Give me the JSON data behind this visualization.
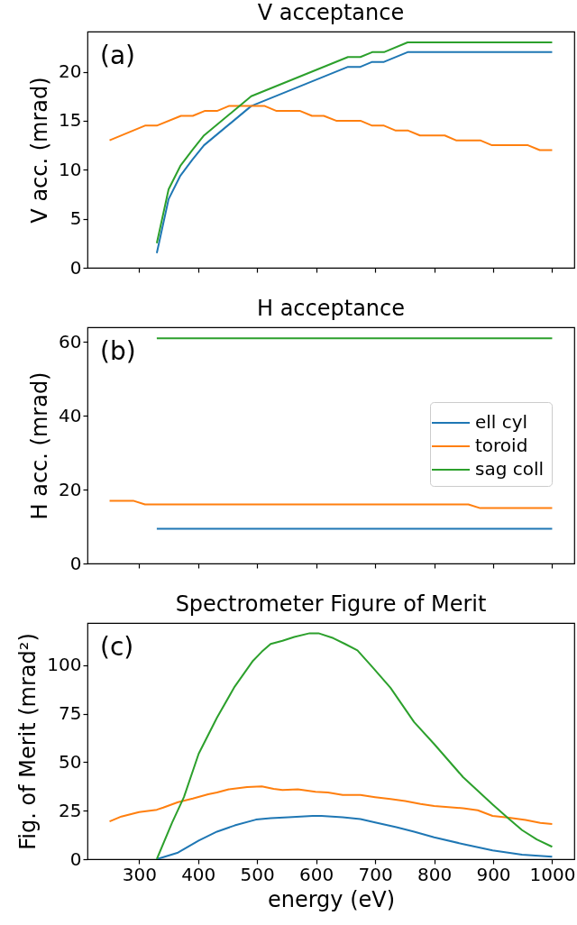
{
  "chart_data": [
    {
      "type": "line",
      "title": "V acceptance",
      "ylabel": "V acc. (mrad)",
      "annotations": [
        "(a)"
      ],
      "tick_labels": "y",
      "xlim": [
        212.5,
        1037.5
      ],
      "xticks": [
        300,
        400,
        500,
        600,
        700,
        800,
        900,
        1000
      ],
      "ylim": [
        0,
        24.1
      ],
      "yticks": [
        0,
        5,
        10,
        15,
        20
      ],
      "series": [
        {
          "color": "#1f77b4",
          "x": [
            330,
            350,
            370,
            390,
            410,
            490,
            654,
            675,
            695,
            715,
            755,
            1000
          ],
          "values": [
            1.5,
            7,
            9.4,
            11,
            12.5,
            16.5,
            20.5,
            20.5,
            21,
            21,
            22,
            22
          ]
        },
        {
          "color": "#ff7f0e",
          "x": [
            250,
            310,
            330,
            371,
            391,
            411,
            432,
            452,
            513,
            533,
            573,
            593,
            613,
            634,
            675,
            695,
            715,
            735,
            756,
            776,
            818,
            837,
            878,
            898,
            959,
            979,
            1000
          ],
          "values": [
            13,
            14.5,
            14.5,
            15.5,
            15.5,
            16,
            16,
            16.5,
            16.5,
            16,
            16,
            15.5,
            15.5,
            15,
            15,
            14.5,
            14.5,
            14,
            14,
            13.5,
            13.5,
            13,
            13,
            12.5,
            12.5,
            12,
            12
          ]
        },
        {
          "color": "#2ca02c",
          "x": [
            330,
            350,
            370,
            390,
            410,
            490,
            654,
            675,
            695,
            715,
            755,
            1000
          ],
          "values": [
            2.5,
            8,
            10.4,
            12,
            13.5,
            17.5,
            21.5,
            21.5,
            22,
            22,
            23,
            23
          ]
        }
      ]
    },
    {
      "type": "line",
      "title": "H acceptance",
      "ylabel": "H acc. (mrad)",
      "annotations": [
        "(b)"
      ],
      "tick_labels": "y",
      "legend": "right",
      "xlim": [
        212.5,
        1037.5
      ],
      "xticks": [
        300,
        400,
        500,
        600,
        700,
        800,
        900,
        1000
      ],
      "ylim": [
        0,
        64
      ],
      "yticks": [
        0,
        20,
        40,
        60
      ],
      "series": [
        {
          "name": "ell cyl",
          "color": "#1f77b4",
          "x": [
            330,
            1000
          ],
          "values": [
            9.4,
            9.4
          ]
        },
        {
          "name": "toroid",
          "color": "#ff7f0e",
          "x": [
            250,
            290,
            310,
            858,
            878,
            1000
          ],
          "values": [
            17,
            17,
            16,
            16,
            15,
            15
          ]
        },
        {
          "name": "sag coll",
          "color": "#2ca02c",
          "x": [
            330,
            1000
          ],
          "values": [
            61,
            61
          ]
        }
      ]
    },
    {
      "type": "line",
      "title": "Spectrometer Figure of Merit",
      "ylabel": "Fig. of Merit (mrad²)",
      "xlabel": "energy (eV)",
      "annotations": [
        "(c)"
      ],
      "xlim": [
        212.5,
        1037.5
      ],
      "xticks": [
        300,
        400,
        500,
        600,
        700,
        800,
        900,
        1000
      ],
      "ylim": [
        0,
        121.8
      ],
      "yticks": [
        0,
        25,
        50,
        75,
        100
      ],
      "series": [
        {
          "color": "#1f77b4",
          "x": [
            330,
            366,
            401,
            432,
            462,
            498,
            523,
            553,
            594,
            609,
            645,
            675,
            700,
            736,
            766,
            800,
            849,
            899,
            949,
            1000
          ],
          "values": [
            0,
            3.4,
            9.6,
            14.2,
            17.4,
            20.4,
            21.2,
            21.6,
            22.3,
            22.3,
            21.6,
            20.7,
            18.9,
            16.5,
            14.2,
            11.3,
            7.8,
            4.5,
            2.3,
            1.3
          ]
        },
        {
          "color": "#ff7f0e",
          "x": [
            250,
            270,
            300,
            330,
            341,
            366,
            391,
            417,
            432,
            452,
            483,
            508,
            528,
            543,
            569,
            599,
            620,
            645,
            675,
            700,
            726,
            751,
            777,
            800,
            849,
            874,
            899,
            924,
            955,
            980,
            1000
          ],
          "values": [
            19.5,
            22,
            24.3,
            25.5,
            26.6,
            29.4,
            31.3,
            33.5,
            34.4,
            36,
            37.2,
            37.5,
            36.3,
            35.7,
            36,
            34.8,
            34.4,
            33.1,
            33.1,
            32,
            31,
            30,
            28.5,
            27.4,
            26.3,
            25.2,
            22.3,
            21.5,
            20.2,
            18.7,
            18.1
          ]
        },
        {
          "color": "#2ca02c",
          "x": [
            330,
            356,
            376,
            401,
            432,
            462,
            493,
            508,
            523,
            543,
            563,
            589,
            604,
            629,
            649,
            670,
            695,
            726,
            766,
            800,
            849,
            899,
            924,
            949,
            974,
            1000
          ],
          "values": [
            0,
            18.9,
            32,
            54.4,
            73,
            89,
            102.3,
            107,
            111,
            112.6,
            114.6,
            116.5,
            116.5,
            114,
            111,
            107.7,
            99.2,
            88.4,
            70.7,
            59.4,
            42.3,
            28.2,
            21.5,
            15,
            10.2,
            6.4
          ]
        }
      ]
    }
  ]
}
